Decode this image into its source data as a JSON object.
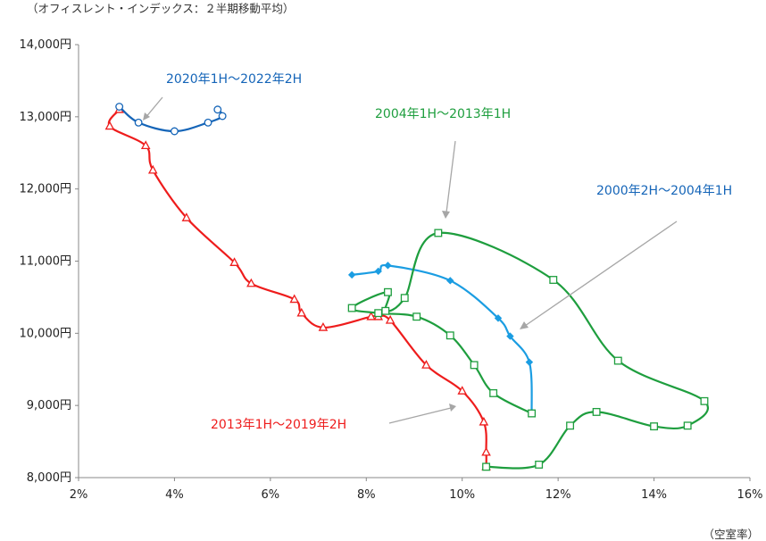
{
  "chart_data": {
    "type": "line",
    "subtitle": "（オフィスレント・インデックス：２半期移動平均）",
    "xlabel": "（空室率）",
    "ylabel": "",
    "xlim": [
      2,
      16
    ],
    "ylim": [
      8000,
      14000
    ],
    "x_ticks": [
      "2%",
      "4%",
      "6%",
      "8%",
      "10%",
      "12%",
      "14%",
      "16%"
    ],
    "x_tick_values": [
      2,
      4,
      6,
      8,
      10,
      12,
      14,
      16
    ],
    "y_ticks": [
      "8,000円",
      "9,000円",
      "10,000円",
      "11,000円",
      "12,000円",
      "13,000円",
      "14,000円"
    ],
    "y_tick_values": [
      8000,
      9000,
      10000,
      11000,
      12000,
      13000,
      14000
    ],
    "grid": false,
    "legend": "none",
    "series": [
      {
        "name": "2013年1H～2019年2H",
        "color": "#ee1c1c",
        "marker": "triangle",
        "points": [
          [
            10.5,
            8150
          ],
          [
            10.5,
            8350
          ],
          [
            10.45,
            8770
          ],
          [
            10.0,
            9200
          ],
          [
            9.25,
            9560
          ],
          [
            8.5,
            10180
          ],
          [
            8.25,
            10230
          ],
          [
            8.1,
            10230
          ],
          [
            7.1,
            10080
          ],
          [
            6.65,
            10280
          ],
          [
            6.5,
            10470
          ],
          [
            5.6,
            10690
          ],
          [
            5.25,
            10980
          ],
          [
            4.25,
            11600
          ],
          [
            3.55,
            12260
          ],
          [
            3.4,
            12600
          ],
          [
            2.65,
            12870
          ],
          [
            2.85,
            13100
          ]
        ]
      },
      {
        "name": "2000年2H～2004年1H",
        "color": "#1b9de2",
        "marker": "star",
        "points": [
          [
            7.7,
            10810
          ],
          [
            8.25,
            10860
          ],
          [
            8.45,
            10940
          ],
          [
            9.75,
            10730
          ],
          [
            10.75,
            10210
          ],
          [
            11.0,
            9960
          ],
          [
            11.4,
            9600
          ],
          [
            11.45,
            8900
          ]
        ]
      },
      {
        "name": "2004年1H～2013年1H",
        "color": "#1e9e3e",
        "marker": "square",
        "points": [
          [
            11.45,
            8890
          ],
          [
            10.65,
            9170
          ],
          [
            10.25,
            9560
          ],
          [
            9.75,
            9970
          ],
          [
            9.05,
            10230
          ],
          [
            8.25,
            10280
          ],
          [
            7.7,
            10350
          ],
          [
            8.45,
            10570
          ],
          [
            8.4,
            10310
          ],
          [
            8.8,
            10490
          ],
          [
            9.5,
            11390
          ],
          [
            11.9,
            10740
          ],
          [
            13.25,
            9620
          ],
          [
            15.05,
            9060
          ],
          [
            14.7,
            8720
          ],
          [
            14.0,
            8710
          ],
          [
            12.8,
            8910
          ],
          [
            12.25,
            8720
          ],
          [
            11.6,
            8180
          ],
          [
            10.5,
            8150
          ]
        ]
      },
      {
        "name": "2020年1H～2022年2H",
        "color": "#1565b8",
        "marker": "circle",
        "points": [
          [
            4.9,
            13100
          ],
          [
            5.0,
            13010
          ],
          [
            4.7,
            12920
          ],
          [
            4.0,
            12800
          ],
          [
            3.25,
            12920
          ],
          [
            2.85,
            13140
          ]
        ]
      }
    ],
    "annotations": [
      {
        "text": "2020年1H～2022年2H",
        "color": "#1565b8"
      },
      {
        "text": "2004年1H～2013年1H",
        "color": "#1e9e3e"
      },
      {
        "text": "2000年2H～2004年1H",
        "color": "#1565b8"
      },
      {
        "text": "2013年1H～2019年2H",
        "color": "#ee1c1c"
      }
    ]
  }
}
